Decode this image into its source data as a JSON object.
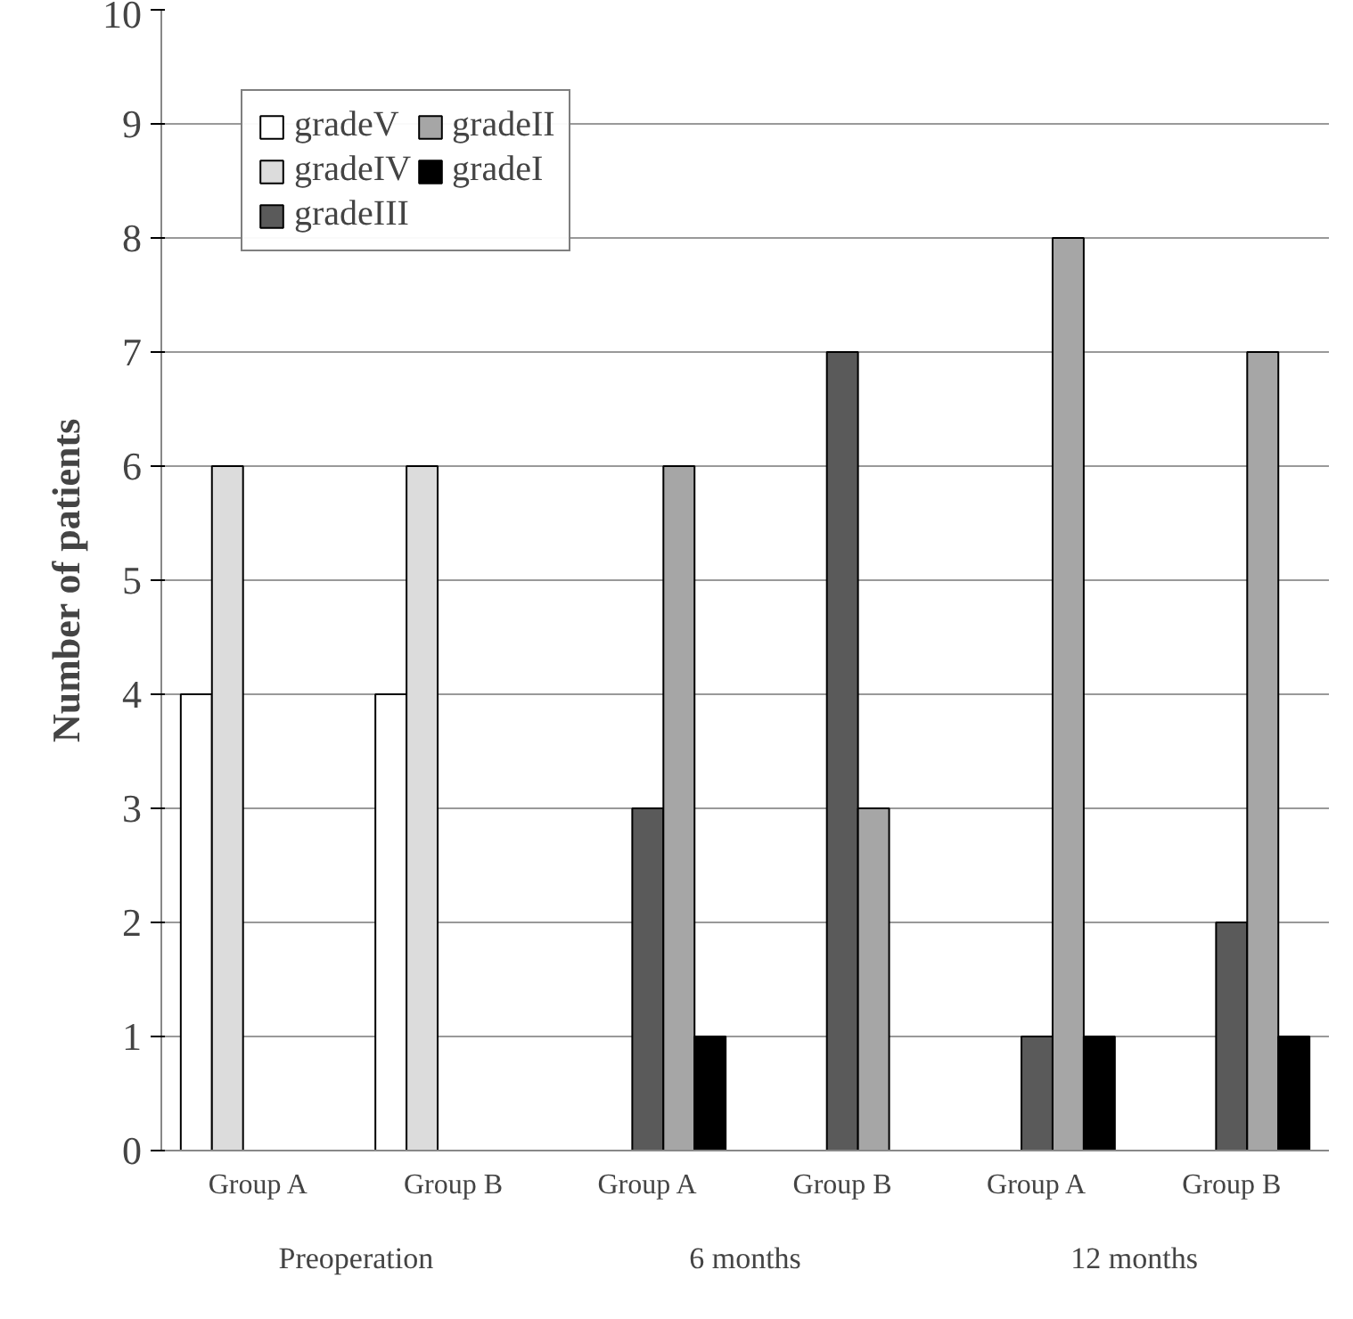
{
  "chart_data": {
    "type": "bar",
    "ylabel": "Number of patients",
    "categories": [
      "Group A",
      "Group B",
      "Group A",
      "Group B",
      "Group A",
      "Group B"
    ],
    "annotations": [
      "Preoperation",
      "6 months",
      "12 months"
    ],
    "series": [
      {
        "name": "gradeV",
        "color": "#ffffff",
        "values": [
          4,
          4,
          null,
          null,
          null,
          null
        ]
      },
      {
        "name": "gradeIV",
        "color": "#dcdcdc",
        "values": [
          6,
          6,
          null,
          null,
          null,
          null
        ]
      },
      {
        "name": "gradeIII",
        "color": "#5a5a5a",
        "values": [
          null,
          null,
          3,
          7,
          1,
          2
        ]
      },
      {
        "name": "gradeII",
        "color": "#a6a6a6",
        "values": [
          null,
          null,
          6,
          3,
          8,
          7
        ]
      },
      {
        "name": "gradeI",
        "color": "#000000",
        "values": [
          null,
          null,
          1,
          null,
          1,
          1
        ]
      }
    ],
    "ylim": [
      0,
      10
    ],
    "yticks": [
      0,
      1,
      2,
      3,
      4,
      5,
      6,
      7,
      8,
      9,
      10
    ],
    "grid": "y",
    "legend": "top left"
  }
}
